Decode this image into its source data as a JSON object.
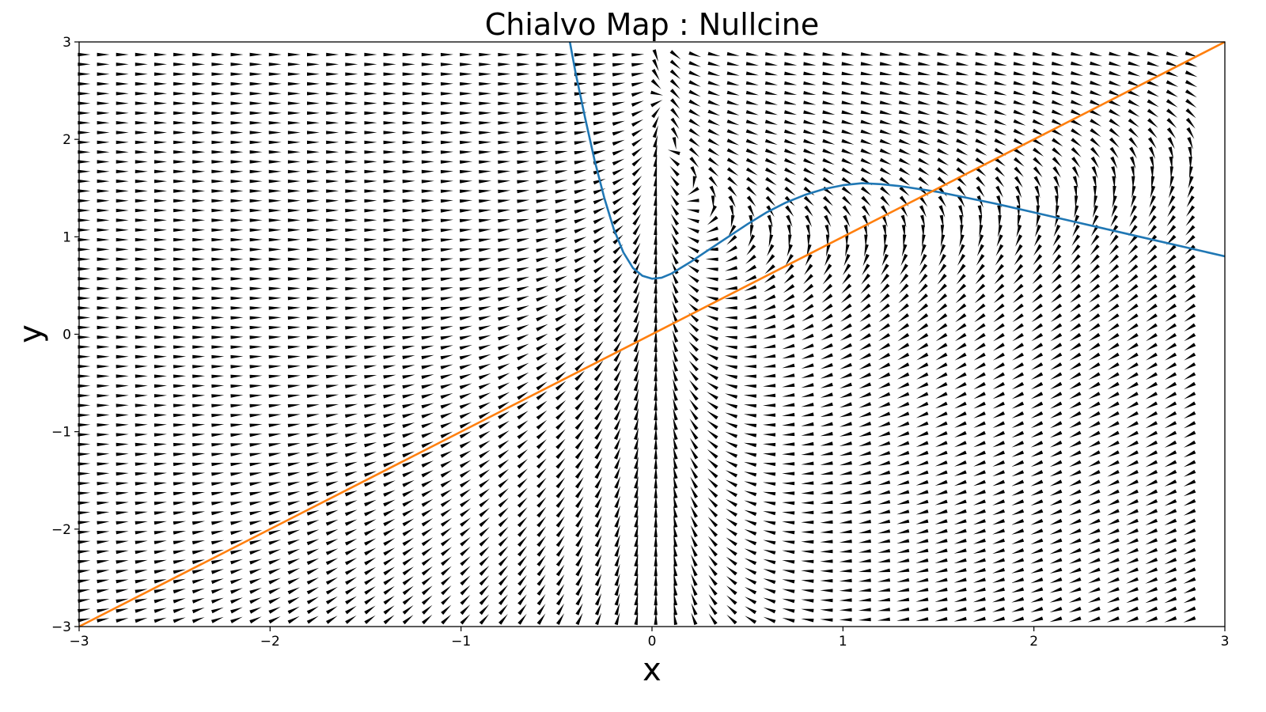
{
  "chart_data": {
    "type": "line",
    "title": "Chialvo Map : Nullcine",
    "xlabel": "x",
    "ylabel": "y",
    "xlim": [
      -3,
      3
    ],
    "ylim": [
      -3,
      3
    ],
    "x_ticks": [
      -3,
      -2,
      -1,
      0,
      1,
      2,
      3
    ],
    "y_ticks": [
      -3,
      -2,
      -1,
      0,
      1,
      2,
      3
    ],
    "x_tick_labels": [
      "−3",
      "−2",
      "−1",
      "0",
      "1",
      "2",
      "3"
    ],
    "y_tick_labels": [
      "−3",
      "−2",
      "−1",
      "0",
      "1",
      "2",
      "3"
    ],
    "grid": false,
    "legend": "none",
    "background": "quiver field of direction arrows over the full plot area",
    "series": [
      {
        "color": "#1f77b4",
        "points": [
          [
            -0.43,
            3.0
          ],
          [
            -0.4,
            2.68
          ],
          [
            -0.35,
            2.22
          ],
          [
            -0.3,
            1.78
          ],
          [
            -0.25,
            1.4
          ],
          [
            -0.2,
            1.08
          ],
          [
            -0.15,
            0.84
          ],
          [
            -0.1,
            0.68
          ],
          [
            -0.05,
            0.6
          ],
          [
            0.0,
            0.57
          ],
          [
            0.05,
            0.58
          ],
          [
            0.1,
            0.62
          ],
          [
            0.2,
            0.74
          ],
          [
            0.3,
            0.87
          ],
          [
            0.4,
            1.0
          ],
          [
            0.5,
            1.13
          ],
          [
            0.6,
            1.25
          ],
          [
            0.7,
            1.35
          ],
          [
            0.8,
            1.43
          ],
          [
            0.9,
            1.49
          ],
          [
            1.0,
            1.53
          ],
          [
            1.1,
            1.55
          ],
          [
            1.2,
            1.54
          ],
          [
            1.3,
            1.52
          ],
          [
            1.4,
            1.49
          ],
          [
            1.5,
            1.46
          ],
          [
            1.6,
            1.42
          ],
          [
            1.8,
            1.34
          ],
          [
            2.0,
            1.25
          ],
          [
            2.2,
            1.16
          ],
          [
            2.4,
            1.07
          ],
          [
            2.6,
            0.98
          ],
          [
            2.8,
            0.89
          ],
          [
            3.0,
            0.8
          ]
        ]
      },
      {
        "color": "#ff7f0e",
        "points": [
          [
            -3,
            -3
          ],
          [
            3,
            3
          ]
        ]
      }
    ]
  }
}
